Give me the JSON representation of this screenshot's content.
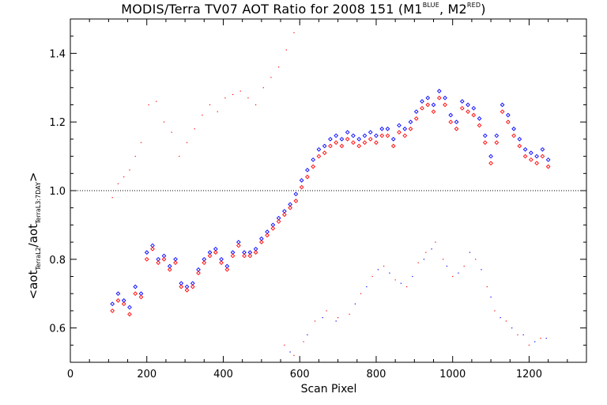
{
  "chart_data": {
    "type": "scatter",
    "title_main": "MODIS/Terra TV07 AOT Ratio for 2008 151 (M1",
    "title_sup1": "BLUE",
    "title_mid": ", M2",
    "title_sup2": "RED",
    "title_end": ")",
    "xlabel": "Scan Pixel",
    "ylabel_pre": "<aot",
    "ylabel_sub1": "TerraL2",
    "ylabel_mid": "/aot",
    "ylabel_sub2": "TerraL3:7DAY",
    "ylabel_post": ">",
    "xlim": [
      0,
      1350
    ],
    "ylim": [
      0.5,
      1.5
    ],
    "xticks": [
      0,
      200,
      400,
      600,
      800,
      1000,
      1200
    ],
    "xtick_labels": [
      "0",
      "200",
      "400",
      "600",
      "800",
      "1000",
      "1200"
    ],
    "yticks": [
      0.6,
      0.8,
      1.0,
      1.2,
      1.4
    ],
    "ytick_labels": [
      "0.6",
      "0.8",
      "1.0",
      "1.2",
      "1.4"
    ],
    "reference_line": 1.0,
    "grid": false,
    "legend": "none",
    "series": [
      {
        "color": "#0000ff",
        "marker": "diamond",
        "values": [
          [
            110,
            0.67
          ],
          [
            125,
            0.7
          ],
          [
            140,
            0.68
          ],
          [
            155,
            0.66
          ],
          [
            170,
            0.72
          ],
          [
            185,
            0.7
          ],
          [
            200,
            0.82
          ],
          [
            215,
            0.84
          ],
          [
            230,
            0.8
          ],
          [
            245,
            0.81
          ],
          [
            260,
            0.78
          ],
          [
            275,
            0.8
          ],
          [
            290,
            0.73
          ],
          [
            305,
            0.72
          ],
          [
            320,
            0.73
          ],
          [
            335,
            0.77
          ],
          [
            350,
            0.8
          ],
          [
            365,
            0.82
          ],
          [
            380,
            0.83
          ],
          [
            395,
            0.8
          ],
          [
            410,
            0.78
          ],
          [
            425,
            0.82
          ],
          [
            440,
            0.85
          ],
          [
            455,
            0.82
          ],
          [
            470,
            0.82
          ],
          [
            485,
            0.83
          ],
          [
            500,
            0.86
          ],
          [
            515,
            0.88
          ],
          [
            530,
            0.9
          ],
          [
            545,
            0.92
          ],
          [
            560,
            0.94
          ],
          [
            575,
            0.96
          ],
          [
            590,
            0.99
          ],
          [
            605,
            1.03
          ],
          [
            620,
            1.06
          ],
          [
            635,
            1.09
          ],
          [
            650,
            1.12
          ],
          [
            665,
            1.13
          ],
          [
            680,
            1.15
          ],
          [
            695,
            1.16
          ],
          [
            710,
            1.15
          ],
          [
            725,
            1.17
          ],
          [
            740,
            1.16
          ],
          [
            755,
            1.15
          ],
          [
            770,
            1.16
          ],
          [
            785,
            1.17
          ],
          [
            800,
            1.16
          ],
          [
            815,
            1.18
          ],
          [
            830,
            1.18
          ],
          [
            845,
            1.15
          ],
          [
            860,
            1.19
          ],
          [
            875,
            1.18
          ],
          [
            890,
            1.2
          ],
          [
            905,
            1.23
          ],
          [
            920,
            1.26
          ],
          [
            935,
            1.27
          ],
          [
            950,
            1.25
          ],
          [
            965,
            1.29
          ],
          [
            980,
            1.27
          ],
          [
            995,
            1.22
          ],
          [
            1010,
            1.2
          ],
          [
            1025,
            1.26
          ],
          [
            1040,
            1.25
          ],
          [
            1055,
            1.24
          ],
          [
            1070,
            1.21
          ],
          [
            1085,
            1.16
          ],
          [
            1100,
            1.1
          ],
          [
            1115,
            1.16
          ],
          [
            1130,
            1.25
          ],
          [
            1145,
            1.22
          ],
          [
            1160,
            1.18
          ],
          [
            1175,
            1.15
          ],
          [
            1190,
            1.12
          ],
          [
            1205,
            1.11
          ],
          [
            1220,
            1.1
          ],
          [
            1235,
            1.12
          ],
          [
            1250,
            1.09
          ]
        ]
      },
      {
        "color": "#ff0000",
        "marker": "diamond",
        "values": [
          [
            110,
            0.65
          ],
          [
            125,
            0.68
          ],
          [
            140,
            0.67
          ],
          [
            155,
            0.64
          ],
          [
            170,
            0.7
          ],
          [
            185,
            0.69
          ],
          [
            200,
            0.8
          ],
          [
            215,
            0.83
          ],
          [
            230,
            0.79
          ],
          [
            245,
            0.8
          ],
          [
            260,
            0.77
          ],
          [
            275,
            0.79
          ],
          [
            290,
            0.72
          ],
          [
            305,
            0.71
          ],
          [
            320,
            0.72
          ],
          [
            335,
            0.76
          ],
          [
            350,
            0.79
          ],
          [
            365,
            0.81
          ],
          [
            380,
            0.82
          ],
          [
            395,
            0.79
          ],
          [
            410,
            0.77
          ],
          [
            425,
            0.81
          ],
          [
            440,
            0.84
          ],
          [
            455,
            0.81
          ],
          [
            470,
            0.81
          ],
          [
            485,
            0.82
          ],
          [
            500,
            0.85
          ],
          [
            515,
            0.87
          ],
          [
            530,
            0.89
          ],
          [
            545,
            0.91
          ],
          [
            560,
            0.93
          ],
          [
            575,
            0.95
          ],
          [
            590,
            0.97
          ],
          [
            605,
            1.01
          ],
          [
            620,
            1.04
          ],
          [
            635,
            1.07
          ],
          [
            650,
            1.1
          ],
          [
            665,
            1.11
          ],
          [
            680,
            1.13
          ],
          [
            695,
            1.14
          ],
          [
            710,
            1.13
          ],
          [
            725,
            1.15
          ],
          [
            740,
            1.14
          ],
          [
            755,
            1.13
          ],
          [
            770,
            1.14
          ],
          [
            785,
            1.15
          ],
          [
            800,
            1.14
          ],
          [
            815,
            1.16
          ],
          [
            830,
            1.16
          ],
          [
            845,
            1.13
          ],
          [
            860,
            1.17
          ],
          [
            875,
            1.16
          ],
          [
            890,
            1.18
          ],
          [
            905,
            1.21
          ],
          [
            920,
            1.24
          ],
          [
            935,
            1.25
          ],
          [
            950,
            1.23
          ],
          [
            965,
            1.27
          ],
          [
            980,
            1.25
          ],
          [
            995,
            1.2
          ],
          [
            1010,
            1.18
          ],
          [
            1025,
            1.24
          ],
          [
            1040,
            1.23
          ],
          [
            1055,
            1.22
          ],
          [
            1070,
            1.19
          ],
          [
            1085,
            1.14
          ],
          [
            1100,
            1.08
          ],
          [
            1115,
            1.14
          ],
          [
            1130,
            1.23
          ],
          [
            1145,
            1.2
          ],
          [
            1160,
            1.16
          ],
          [
            1175,
            1.13
          ],
          [
            1190,
            1.1
          ],
          [
            1205,
            1.09
          ],
          [
            1220,
            1.08
          ],
          [
            1235,
            1.1
          ],
          [
            1250,
            1.07
          ]
        ]
      },
      {
        "color": "#ff0000",
        "marker": "dot",
        "values": [
          [
            110,
            0.98
          ],
          [
            125,
            1.02
          ],
          [
            140,
            1.04
          ],
          [
            155,
            1.06
          ],
          [
            170,
            1.1
          ],
          [
            185,
            1.14
          ],
          [
            205,
            1.25
          ],
          [
            225,
            1.26
          ],
          [
            245,
            1.2
          ],
          [
            265,
            1.17
          ],
          [
            285,
            1.1
          ],
          [
            305,
            1.14
          ],
          [
            325,
            1.18
          ],
          [
            345,
            1.22
          ],
          [
            365,
            1.25
          ],
          [
            385,
            1.23
          ],
          [
            405,
            1.27
          ],
          [
            425,
            1.28
          ],
          [
            445,
            1.29
          ],
          [
            465,
            1.27
          ],
          [
            485,
            1.25
          ],
          [
            505,
            1.3
          ],
          [
            525,
            1.33
          ],
          [
            545,
            1.36
          ],
          [
            565,
            1.41
          ],
          [
            585,
            1.46
          ],
          [
            600,
            1.49
          ]
        ]
      },
      {
        "color": "#ff0000",
        "marker": "dot",
        "values": [
          [
            560,
            0.55
          ],
          [
            585,
            0.52
          ],
          [
            610,
            0.56
          ],
          [
            640,
            0.62
          ],
          [
            670,
            0.65
          ],
          [
            700,
            0.63
          ],
          [
            730,
            0.64
          ],
          [
            760,
            0.7
          ],
          [
            790,
            0.75
          ],
          [
            820,
            0.78
          ],
          [
            850,
            0.74
          ],
          [
            880,
            0.72
          ],
          [
            910,
            0.79
          ],
          [
            930,
            0.82
          ],
          [
            955,
            0.85
          ],
          [
            975,
            0.8
          ],
          [
            1000,
            0.75
          ],
          [
            1030,
            0.78
          ],
          [
            1060,
            0.8
          ],
          [
            1090,
            0.72
          ],
          [
            1110,
            0.65
          ],
          [
            1140,
            0.62
          ],
          [
            1170,
            0.58
          ],
          [
            1200,
            0.55
          ],
          [
            1230,
            0.57
          ]
        ]
      },
      {
        "color": "#0000ff",
        "marker": "dot",
        "values": [
          [
            575,
            0.53
          ],
          [
            620,
            0.58
          ],
          [
            660,
            0.63
          ],
          [
            695,
            0.62
          ],
          [
            745,
            0.67
          ],
          [
            775,
            0.72
          ],
          [
            805,
            0.77
          ],
          [
            835,
            0.76
          ],
          [
            865,
            0.73
          ],
          [
            895,
            0.75
          ],
          [
            925,
            0.8
          ],
          [
            945,
            0.83
          ],
          [
            985,
            0.78
          ],
          [
            1015,
            0.76
          ],
          [
            1045,
            0.82
          ],
          [
            1075,
            0.77
          ],
          [
            1100,
            0.69
          ],
          [
            1125,
            0.63
          ],
          [
            1155,
            0.6
          ],
          [
            1185,
            0.58
          ],
          [
            1215,
            0.56
          ],
          [
            1245,
            0.57
          ]
        ]
      }
    ]
  }
}
